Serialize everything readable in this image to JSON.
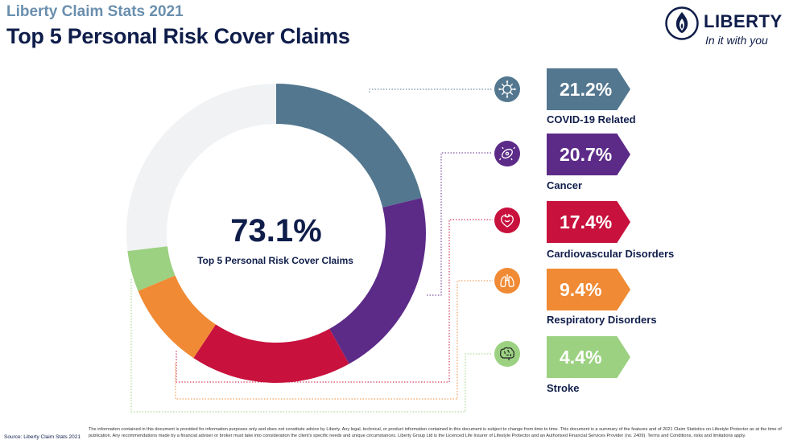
{
  "header": {
    "subtitle": "Liberty Claim Stats 2021",
    "title": "Top 5 Personal Risk Cover Claims"
  },
  "logo": {
    "name": "LIBERTY",
    "tagline": "In it with you",
    "icon": "flame-logo-icon"
  },
  "center": {
    "value": "73.1%",
    "label": "Top 5 Personal Risk Cover Claims"
  },
  "chart_data": {
    "type": "pie",
    "title": "Top 5 Personal Risk Cover Claims",
    "total": 73.1,
    "series": [
      {
        "name": "COVID-19 Related",
        "value": 21.2,
        "label": "21.2%",
        "color": "#53778f",
        "icon": "virus-icon"
      },
      {
        "name": "Cancer",
        "value": 20.7,
        "label": "20.7%",
        "color": "#5c2b88",
        "icon": "cancer-cell-icon"
      },
      {
        "name": "Cardiovascular Disorders",
        "value": 17.4,
        "label": "17.4%",
        "color": "#c8113d",
        "icon": "heart-icon"
      },
      {
        "name": "Respiratory Disorders",
        "value": 9.4,
        "label": "9.4%",
        "color": "#f08a34",
        "icon": "lungs-icon"
      },
      {
        "name": "Stroke",
        "value": 4.4,
        "label": "4.4%",
        "color": "#9cd182",
        "icon": "brain-icon"
      }
    ],
    "remainder_color": "#f1f2f4"
  },
  "footer": {
    "source": "Source: Liberty Claim Stats 2021",
    "disclaimer": "The information contained in this document is provided for information purposes only and does not constitute advice by Liberty. Any legal, technical, or product information contained in this document is subject to change from time to time. This document is a summary of the features and of 2021 Claim Statistics on Lifestyle Protector as at the time of publication. Any recommendations made by a financial adviser or broker must take into consideration the client's specific needs and unique circumstances. Liberty Group Ltd is the Licenced Life Insurer of Lifestyle Protector and an Authorised Financial Services Provider (no. 2409). Terms and Conditions, risks and limitations apply."
  }
}
